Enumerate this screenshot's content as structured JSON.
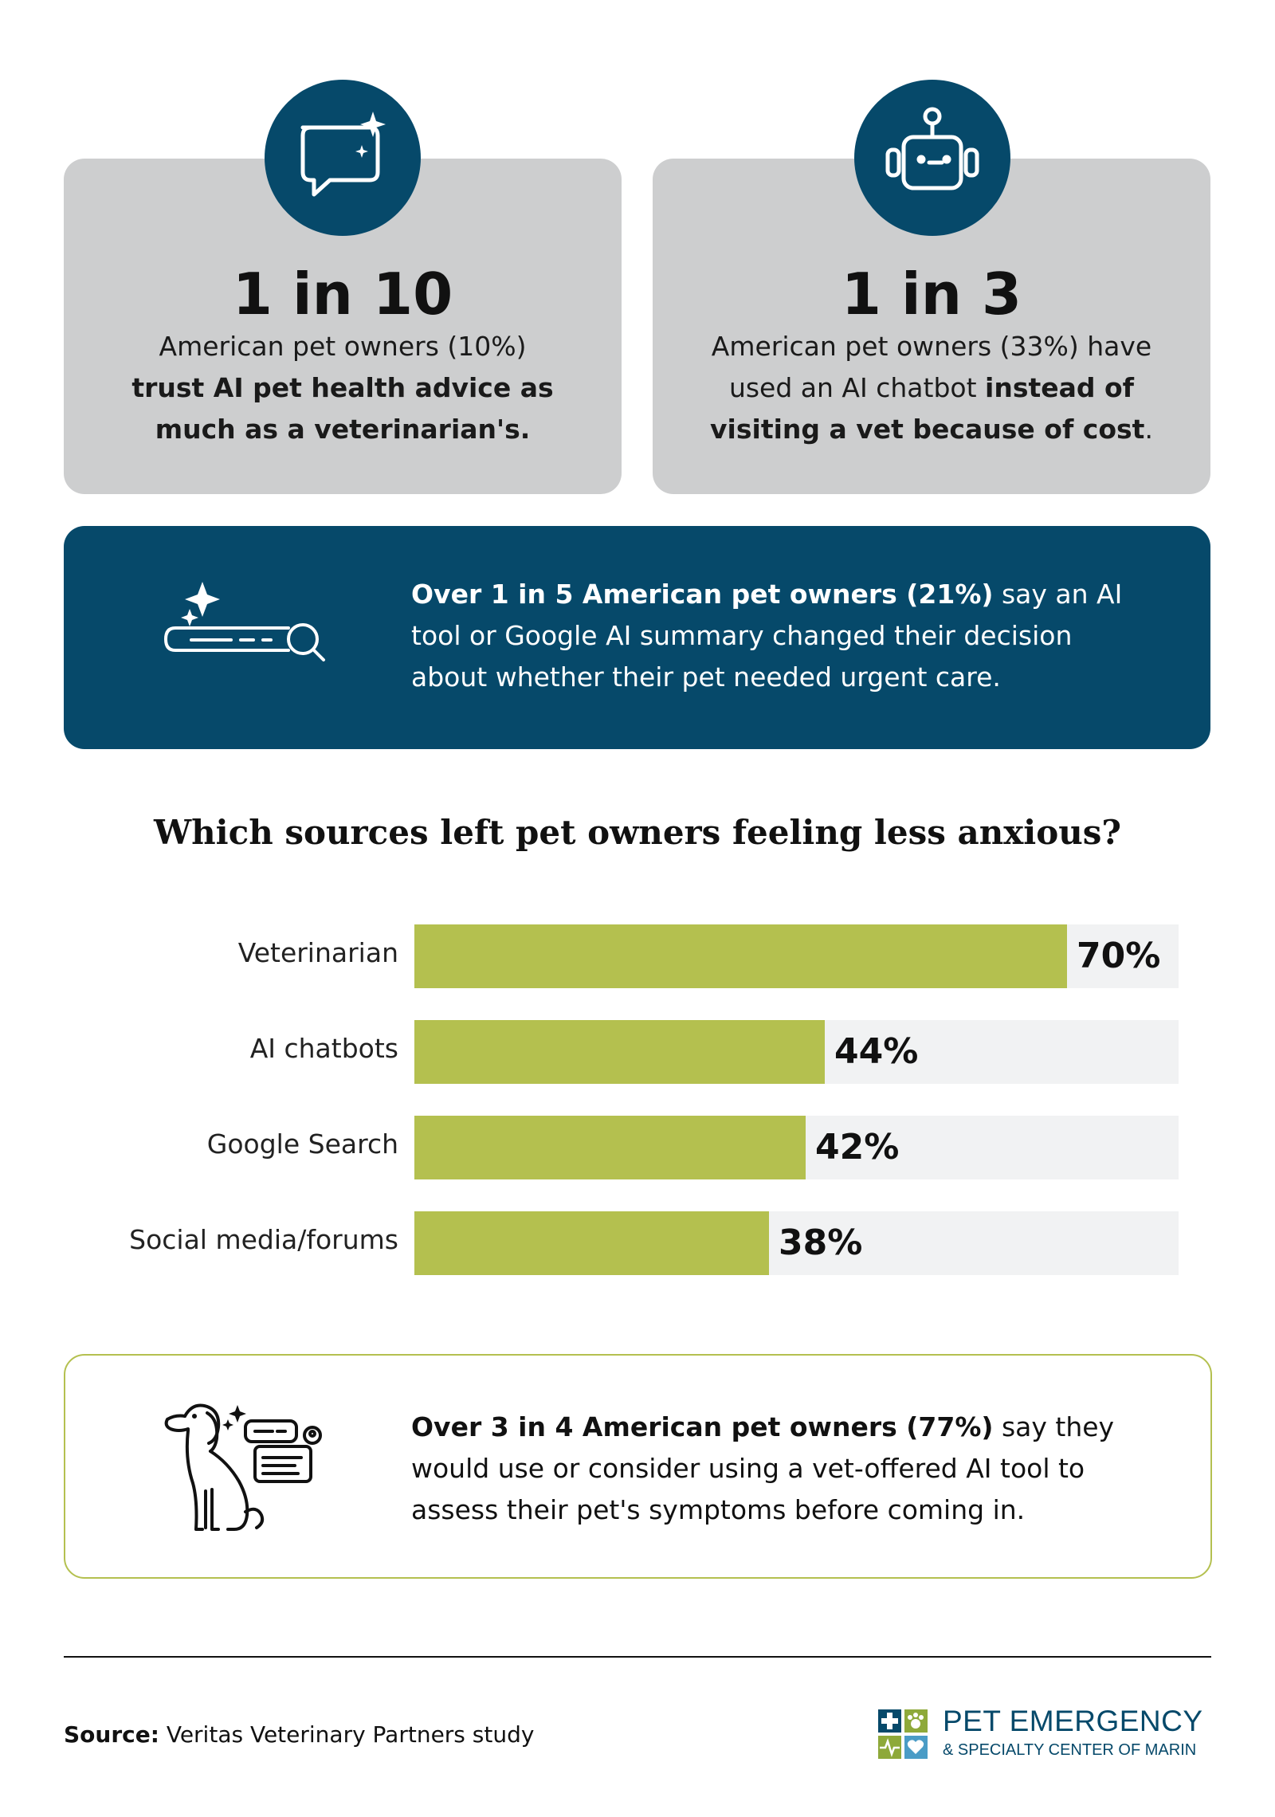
{
  "stats": [
    {
      "icon": "sparkle-chat-bubble-icon",
      "headline": "1 in 10",
      "line1": "American pet owners (10%)",
      "line2": "trust AI pet health advice as",
      "line3": "much as a veterinarian's."
    },
    {
      "icon": "robot-icon",
      "headline": "1 in 3",
      "line1": "American pet owners (33%) have",
      "line2_plain": "used an AI chatbot ",
      "line2_bold": "instead of",
      "line3_bold": "visiting a vet because of cost",
      "line3_plain": "."
    }
  ],
  "banner": {
    "icon": "ai-search-bar-icon",
    "bold": "Over 1 in 5 American pet owners (21%)",
    "rest_line1": " say an AI",
    "line2": "tool or Google AI summary changed their decision",
    "line3": "about whether their pet needed urgent care."
  },
  "chart_data": {
    "type": "bar",
    "orientation": "horizontal",
    "title": "Which sources left pet owners feeling less anxious?",
    "categories": [
      "Veterinarian",
      "AI chatbots",
      "Google Search",
      "Social media/forums"
    ],
    "values": [
      70,
      44,
      42,
      38
    ],
    "value_labels": [
      "70%",
      "44%",
      "42%",
      "38%"
    ],
    "xlim": [
      0,
      100
    ],
    "grid": false,
    "legend": "none",
    "bar_color": "#b4c04f",
    "track_color": "#f1f2f3"
  },
  "callout": {
    "icon": "dog-with-chat-icon",
    "bold": "Over 3 in 4 American pet owners (77%)",
    "rest_line1": " say they",
    "line2": "would use or consider using a vet-offered AI tool to",
    "line3": "assess their pet's symptoms before coming in."
  },
  "source": {
    "label": "Source:",
    "text": " Veritas Veterinary Partners study"
  },
  "logo": {
    "name": "PET EMERGENCY",
    "sub": "& SPECIALTY CENTER OF MARIN",
    "colors": {
      "blue": "#06496a",
      "light_blue": "#4a9cc6",
      "green": "#8ea93a"
    }
  },
  "colors": {
    "navy": "#06496a",
    "card_gray": "#cdcecf",
    "accent_green": "#b4c04f"
  }
}
